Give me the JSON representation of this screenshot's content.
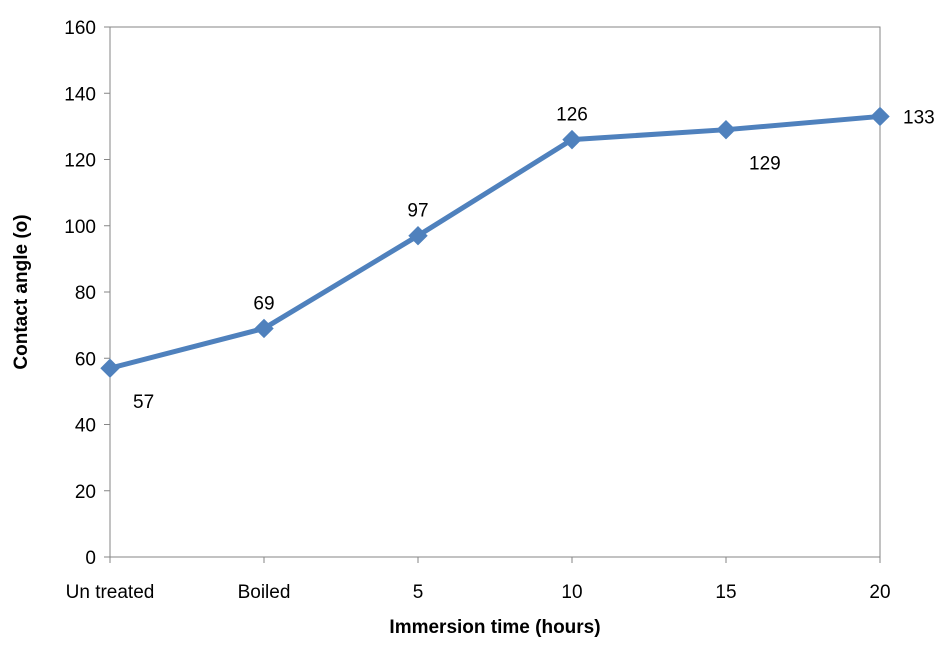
{
  "chart_data": {
    "type": "line",
    "title": "",
    "xlabel": "Immersion time (hours)",
    "ylabel": "Contact angle (o)",
    "categories": [
      "Un treated",
      "Boiled",
      "5",
      "10",
      "15",
      "20"
    ],
    "series": [
      {
        "values": [
          57,
          69,
          97,
          126,
          129,
          133
        ],
        "data_labels": [
          "57",
          "69",
          "97",
          "126",
          "129",
          "133"
        ],
        "data_label_placement": [
          "below-right",
          "above",
          "above",
          "above",
          "below-right",
          "right"
        ],
        "color": "#4F81BD",
        "marker": "diamond"
      }
    ],
    "ylim": [
      0,
      160
    ],
    "yticks": [
      0,
      20,
      40,
      60,
      80,
      100,
      120,
      140,
      160
    ],
    "yticks_text": [
      "0",
      "20",
      "40",
      "60",
      "80",
      "100",
      "120",
      "140",
      "160"
    ],
    "grid": false,
    "legend": "none"
  }
}
